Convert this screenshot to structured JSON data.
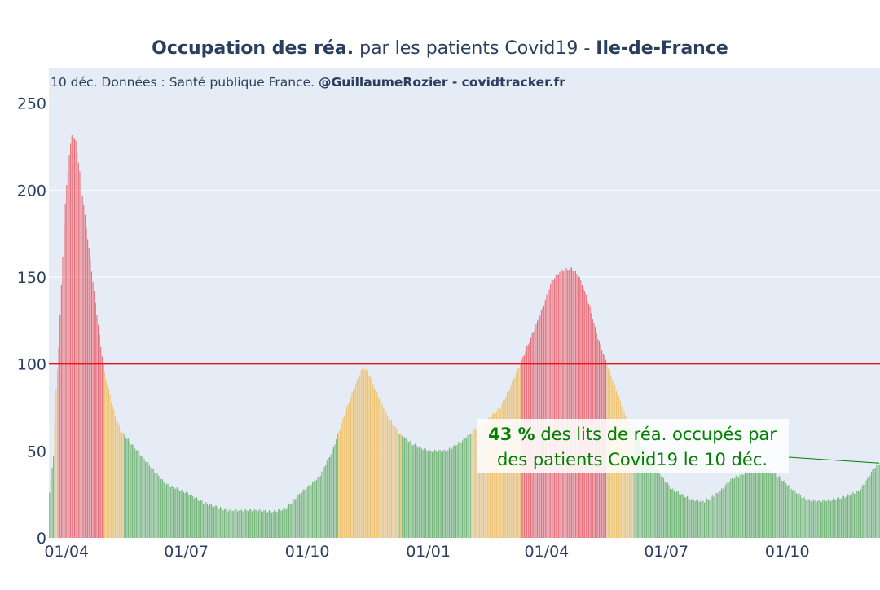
{
  "title": {
    "bold1": "Occupation des réa.",
    "normal": " par les patients Covid19 - ",
    "bold2": "Ile-de-France"
  },
  "subtitle": {
    "normal": "10 déc. Données : Santé publique France. ",
    "bold": "@GuillaumeRozier - covidtracker.fr"
  },
  "annotation": {
    "value": "43  %",
    "line1_rest": " des lits de réa. occupés par",
    "line2": "des patients Covid19 le 10 déc."
  },
  "colors": {
    "plot_bg": "#e5ecf6",
    "grid": "#ffffff",
    "text": "#2a3f5f",
    "red": "#e8505b",
    "orange": "#f0b94f",
    "green": "#5aaa5a",
    "threshold": "#e8111c",
    "annotation": "#008000"
  },
  "chart_data": {
    "type": "bar",
    "title": "Occupation des réa. par les patients Covid19 - Ile-de-France",
    "xlabel": "",
    "ylabel": "",
    "ylim": [
      0,
      270
    ],
    "yticks": [
      0,
      50,
      100,
      150,
      200,
      250
    ],
    "grid": true,
    "x_start": "2020-03-19",
    "x_end": "2021-12-10",
    "xticks": [
      {
        "date": "2020-04-01",
        "label": "01/04"
      },
      {
        "date": "2020-07-01",
        "label": "01/07"
      },
      {
        "date": "2020-10-01",
        "label": "01/10"
      },
      {
        "date": "2021-01-01",
        "label": "01/01"
      },
      {
        "date": "2021-04-01",
        "label": "01/04"
      },
      {
        "date": "2021-07-01",
        "label": "01/07"
      },
      {
        "date": "2021-10-01",
        "label": "01/10"
      }
    ],
    "threshold": 100,
    "color_rule": {
      "green_below": 60,
      "orange_below": 100,
      "red_from": 100
    },
    "series_keypoints": [
      [
        "2020-03-19",
        26
      ],
      [
        "2020-03-22",
        48
      ],
      [
        "2020-03-24",
        85
      ],
      [
        "2020-03-26",
        110
      ],
      [
        "2020-03-28",
        145
      ],
      [
        "2020-03-30",
        180
      ],
      [
        "2020-04-01",
        203
      ],
      [
        "2020-04-03",
        220
      ],
      [
        "2020-04-05",
        232
      ],
      [
        "2020-04-08",
        228
      ],
      [
        "2020-04-11",
        210
      ],
      [
        "2020-04-15",
        185
      ],
      [
        "2020-04-19",
        160
      ],
      [
        "2020-04-23",
        135
      ],
      [
        "2020-04-27",
        110
      ],
      [
        "2020-04-30",
        95
      ],
      [
        "2020-05-04",
        82
      ],
      [
        "2020-05-08",
        70
      ],
      [
        "2020-05-12",
        62
      ],
      [
        "2020-05-16",
        58
      ],
      [
        "2020-05-25",
        50
      ],
      [
        "2020-06-05",
        40
      ],
      [
        "2020-06-15",
        31
      ],
      [
        "2020-07-01",
        26
      ],
      [
        "2020-07-15",
        20
      ],
      [
        "2020-08-01",
        16
      ],
      [
        "2020-08-20",
        16
      ],
      [
        "2020-09-05",
        15
      ],
      [
        "2020-09-15",
        17
      ],
      [
        "2020-09-25",
        25
      ],
      [
        "2020-10-10",
        35
      ],
      [
        "2020-10-20",
        50
      ],
      [
        "2020-10-28",
        68
      ],
      [
        "2020-11-05",
        85
      ],
      [
        "2020-11-12",
        98
      ],
      [
        "2020-11-16",
        96
      ],
      [
        "2020-11-22",
        85
      ],
      [
        "2020-12-01",
        70
      ],
      [
        "2020-12-10",
        60
      ],
      [
        "2020-12-20",
        54
      ],
      [
        "2021-01-01",
        50
      ],
      [
        "2021-01-15",
        50
      ],
      [
        "2021-01-25",
        55
      ],
      [
        "2021-02-05",
        62
      ],
      [
        "2021-02-15",
        68
      ],
      [
        "2021-02-25",
        75
      ],
      [
        "2021-03-05",
        88
      ],
      [
        "2021-03-12",
        100
      ],
      [
        "2021-03-20",
        115
      ],
      [
        "2021-03-28",
        130
      ],
      [
        "2021-04-05",
        148
      ],
      [
        "2021-04-12",
        154
      ],
      [
        "2021-04-20",
        155
      ],
      [
        "2021-04-26",
        150
      ],
      [
        "2021-05-03",
        135
      ],
      [
        "2021-05-10",
        115
      ],
      [
        "2021-05-17",
        100
      ],
      [
        "2021-05-24",
        85
      ],
      [
        "2021-06-01",
        68
      ],
      [
        "2021-06-08",
        58
      ],
      [
        "2021-06-15",
        50
      ],
      [
        "2021-06-25",
        38
      ],
      [
        "2021-07-05",
        28
      ],
      [
        "2021-07-20",
        22
      ],
      [
        "2021-07-30",
        21
      ],
      [
        "2021-08-10",
        26
      ],
      [
        "2021-08-20",
        34
      ],
      [
        "2021-09-01",
        38
      ],
      [
        "2021-09-15",
        40
      ],
      [
        "2021-09-25",
        35
      ],
      [
        "2021-10-05",
        28
      ],
      [
        "2021-10-15",
        22
      ],
      [
        "2021-10-25",
        21
      ],
      [
        "2021-11-05",
        22
      ],
      [
        "2021-11-15",
        24
      ],
      [
        "2021-11-25",
        27
      ],
      [
        "2021-12-01",
        34
      ],
      [
        "2021-12-06",
        40
      ],
      [
        "2021-12-10",
        43
      ]
    ]
  }
}
